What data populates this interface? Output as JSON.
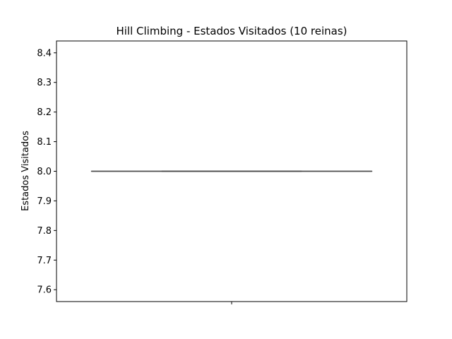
{
  "chart_data": {
    "type": "box",
    "title": "Hill Climbing - Estados Visitados (10 reinas)",
    "xlabel": "",
    "ylabel": "Estados Visitados",
    "ylim": [
      7.56,
      8.44
    ],
    "yticks": [
      7.6,
      7.7,
      7.8,
      7.9,
      8.0,
      8.1,
      8.2,
      8.3,
      8.4
    ],
    "ytick_labels": [
      "7.6",
      "7.7",
      "7.8",
      "7.9",
      "8.0",
      "8.1",
      "8.2",
      "8.3",
      "8.4"
    ],
    "grid": false,
    "boxes": [
      {
        "category": "",
        "min": 8.0,
        "q1": 8.0,
        "median": 8.0,
        "q3": 8.0,
        "max": 8.0
      }
    ],
    "colors": {
      "box": "#4d4d4d",
      "axes": "#000000",
      "background": "#ffffff"
    }
  }
}
